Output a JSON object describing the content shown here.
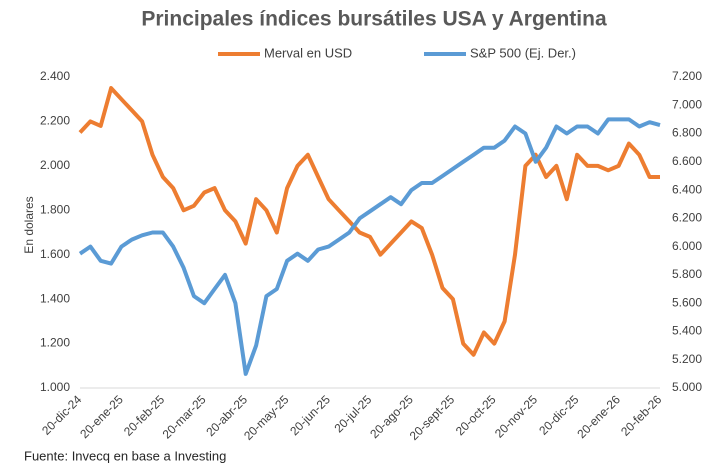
{
  "chart_data": {
    "type": "line",
    "title": "Principales índices bursátiles USA y Argentina",
    "y_label": "En dolares",
    "source": "Fuente: Invecq en base a Investing",
    "categories": [
      "20-dic-24",
      null,
      null,
      null,
      "20-ene-25",
      null,
      null,
      null,
      "20-feb-25",
      null,
      null,
      null,
      "20-mar-25",
      null,
      null,
      null,
      "20-abr-25",
      null,
      null,
      null,
      "20-may-25",
      null,
      null,
      null,
      "20-jun-25",
      null,
      null,
      null,
      "20-jul-25",
      null,
      null,
      null,
      "20-ago-25",
      null,
      null,
      null,
      "20-sept-25",
      null,
      null,
      null,
      "20-oct-25",
      null,
      null,
      null,
      "20-nov-25",
      null,
      null,
      null,
      "20-dic-25",
      null,
      null,
      null,
      "20-ene-26",
      null,
      null,
      null,
      "20-feb-26"
    ],
    "series": [
      {
        "name": "Merval en USD",
        "color": "#ED7D31",
        "axis": "y",
        "values": [
          2150,
          2200,
          2180,
          2350,
          2300,
          2250,
          2200,
          2050,
          1950,
          1900,
          1800,
          1820,
          1880,
          1900,
          1800,
          1750,
          1650,
          1850,
          1800,
          1700,
          1900,
          2000,
          2050,
          1950,
          1850,
          1800,
          1750,
          1700,
          1680,
          1600,
          1650,
          1700,
          1750,
          1720,
          1600,
          1450,
          1400,
          1200,
          1150,
          1250,
          1200,
          1300,
          1600,
          2000,
          2050,
          1950,
          2000,
          1850,
          2050,
          2000,
          2000,
          1980,
          2000,
          2100,
          2050,
          1950,
          1950
        ]
      },
      {
        "name": "S&P 500 (Ej. Der.)",
        "color": "#5B9BD5",
        "axis": "y2",
        "values": [
          5950,
          6000,
          5900,
          5880,
          6000,
          6050,
          6080,
          6100,
          6100,
          6000,
          5850,
          5650,
          5600,
          5700,
          5800,
          5600,
          5100,
          5300,
          5650,
          5700,
          5900,
          5950,
          5900,
          5980,
          6000,
          6050,
          6100,
          6200,
          6250,
          6300,
          6350,
          6300,
          6400,
          6450,
          6450,
          6500,
          6550,
          6600,
          6650,
          6700,
          6700,
          6750,
          6850,
          6800,
          6600,
          6700,
          6850,
          6800,
          6850,
          6850,
          6800,
          6900,
          6900,
          6900,
          6850,
          6880,
          6860
        ]
      }
    ],
    "ylim": [
      1000,
      2400
    ],
    "yticks": [
      {
        "value": 1000,
        "label": "1.000"
      },
      {
        "value": 1200,
        "label": "1.200"
      },
      {
        "value": 1400,
        "label": "1.400"
      },
      {
        "value": 1600,
        "label": "1.600"
      },
      {
        "value": 1800,
        "label": "1.800"
      },
      {
        "value": 2000,
        "label": "2.000"
      },
      {
        "value": 2200,
        "label": "2.200"
      },
      {
        "value": 2400,
        "label": "2.400"
      }
    ],
    "y2lim": [
      5000,
      7200
    ],
    "y2ticks": [
      {
        "value": 5000,
        "label": "5.000"
      },
      {
        "value": 5200,
        "label": "5.200"
      },
      {
        "value": 5400,
        "label": "5.400"
      },
      {
        "value": 5600,
        "label": "5.600"
      },
      {
        "value": 5800,
        "label": "5.800"
      },
      {
        "value": 6000,
        "label": "6.000"
      },
      {
        "value": 6200,
        "label": "6.200"
      },
      {
        "value": 6400,
        "label": "6.400"
      },
      {
        "value": 6600,
        "label": "6.600"
      },
      {
        "value": 6800,
        "label": "6.800"
      },
      {
        "value": 7000,
        "label": "7.000"
      },
      {
        "value": 7200,
        "label": "7.200"
      }
    ],
    "legend": "top"
  }
}
